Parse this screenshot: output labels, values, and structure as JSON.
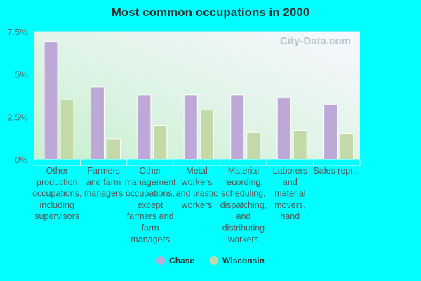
{
  "chart_data": {
    "type": "bar",
    "title": "Most common occupations in 2000",
    "categories": [
      "Other production occupations, including supervisors",
      "Farmers and farm managers",
      "Other management occupations, except farmers and farm managers",
      "Metal workers and plastic workers",
      "Material recording, scheduling, dispatching, and distributing workers",
      "Laborers and material movers, hand",
      "Sales repr..."
    ],
    "category_lines": [
      [
        "Other",
        "production",
        "occupations,",
        "including",
        "supervisors"
      ],
      [
        "Farmers",
        "and farm",
        "managers"
      ],
      [
        "Other",
        "management",
        "occupations,",
        "except",
        "farmers and",
        "farm",
        "managers"
      ],
      [
        "Metal",
        "workers",
        "and plastic",
        "workers"
      ],
      [
        "Material",
        "recording,",
        "scheduling,",
        "dispatching,",
        "and",
        "distributing",
        "workers"
      ],
      [
        "Laborers",
        "and",
        "material",
        "movers,",
        "hand"
      ],
      [
        "Sales repr..."
      ]
    ],
    "series": [
      {
        "name": "Chase",
        "color": "#bea8d8",
        "values": [
          6.9,
          4.25,
          3.8,
          3.8,
          3.8,
          3.6,
          3.2
        ]
      },
      {
        "name": "Wisconsin",
        "color": "#c4d9a8",
        "values": [
          3.5,
          1.2,
          2.0,
          2.9,
          1.6,
          1.7,
          1.5
        ]
      }
    ],
    "yticks": [
      "0%",
      "2.5%",
      "5%",
      "7.5%"
    ],
    "ytick_values": [
      0,
      2.5,
      5,
      7.5
    ],
    "ylim": [
      0,
      7.5
    ],
    "grid": true,
    "legend_position": "bottom",
    "watermark": "City-Data.com"
  }
}
